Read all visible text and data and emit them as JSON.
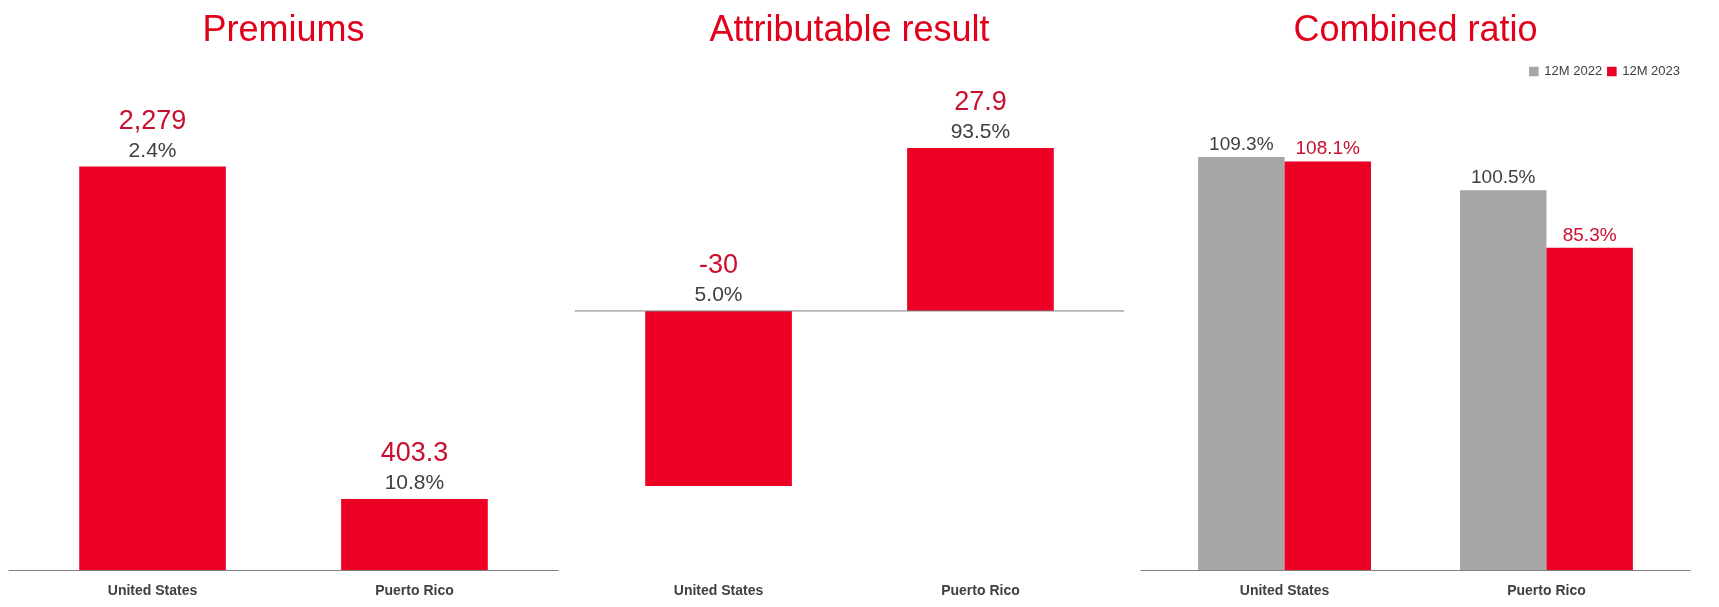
{
  "chart_data": [
    {
      "type": "bar",
      "title": "Premiums",
      "categories": [
        "United States",
        "Puerto Rico"
      ],
      "values": [
        2279,
        403.3
      ],
      "color": "#ec0023",
      "value_labels": [
        "2,279",
        "403.3"
      ],
      "annotations": [
        {
          "text": "2.4%",
          "x": "United States",
          "y": 2279
        },
        {
          "text": "10.8%",
          "x": "Puerto Rico",
          "y": 403.3
        }
      ]
    },
    {
      "type": "bar",
      "title": "Attributable result",
      "categories": [
        "United States",
        "Puerto Rico"
      ],
      "values": [
        -30,
        27.9
      ],
      "color": "#ec0023",
      "value_labels": [
        "-30",
        "27.9"
      ],
      "annotations": [
        {
          "text": "5.0%",
          "x": "United States",
          "y": 0
        },
        {
          "text": "93.5%",
          "x": "Puerto Rico",
          "y": 27.9
        }
      ]
    },
    {
      "type": "bar",
      "title": "Combined ratio",
      "categories": [
        "United States",
        "Puerto Rico"
      ],
      "legend": "top right",
      "series": [
        {
          "name": "12M 2022",
          "color": "#a6a6a6",
          "values": [
            109.3,
            100.5
          ],
          "value_labels": [
            "109.3%",
            "100.5%"
          ]
        },
        {
          "name": "12M 2023",
          "color": "#ec0023",
          "values": [
            108.1,
            85.3
          ],
          "value_labels": [
            "108.1%",
            "85.3%"
          ]
        }
      ]
    }
  ]
}
